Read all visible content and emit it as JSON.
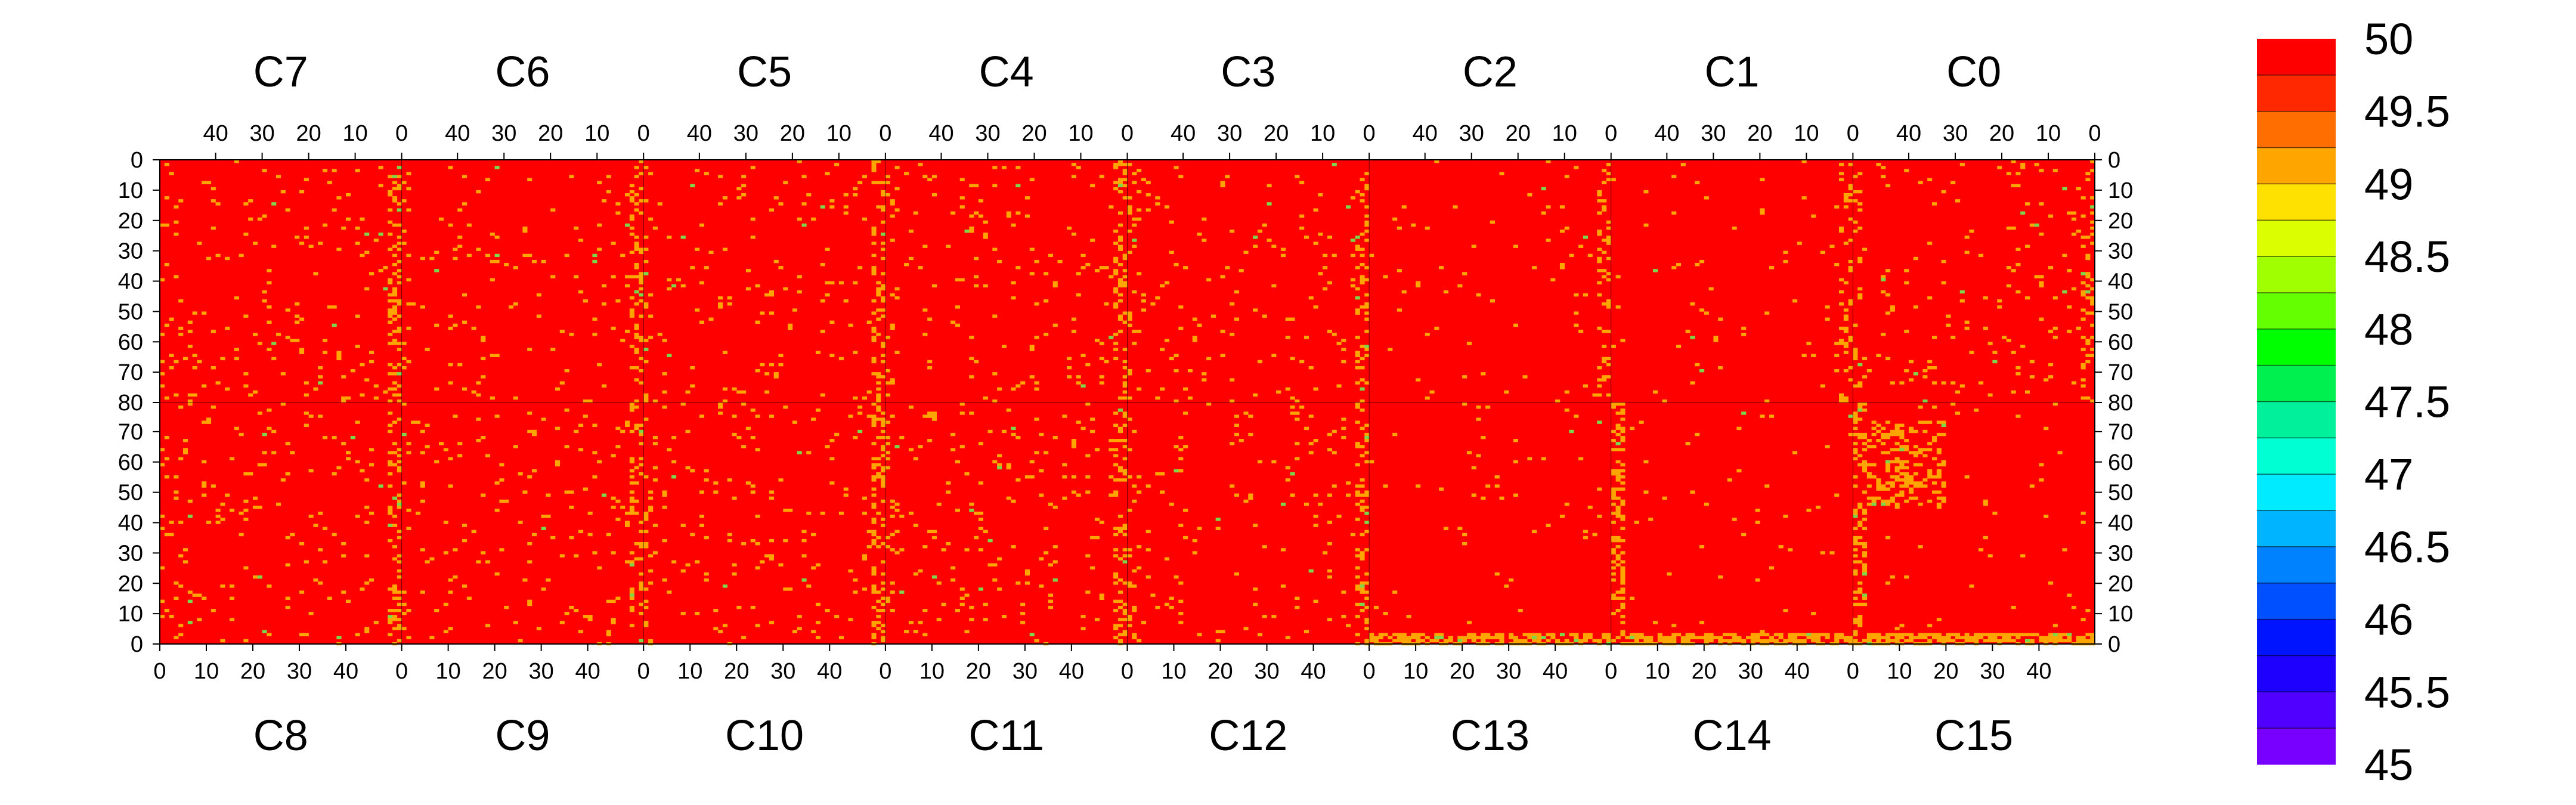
{
  "chart_data": {
    "type": "heatmap",
    "top_chips": [
      "C7",
      "C6",
      "C5",
      "C4",
      "C3",
      "C2",
      "C1",
      "C0"
    ],
    "bottom_chips": [
      "C8",
      "C9",
      "C10",
      "C11",
      "C12",
      "C13",
      "C14",
      "C15"
    ],
    "columns_per_chip": 52,
    "rows_per_half": 80,
    "top_x_ticks": [
      "40",
      "30",
      "20",
      "10",
      "0"
    ],
    "top_x_tick_values": [
      40,
      30,
      20,
      10,
      0
    ],
    "bottom_x_ticks": [
      "0",
      "10",
      "20",
      "30",
      "40"
    ],
    "bottom_x_tick_values": [
      0,
      10,
      20,
      30,
      40
    ],
    "y_ticks_top_half": [
      "0",
      "10",
      "20",
      "30",
      "40",
      "50",
      "60",
      "70",
      "80"
    ],
    "y_ticks_bottom_half": [
      "70",
      "60",
      "50",
      "40",
      "30",
      "20",
      "10",
      "0"
    ],
    "zlim": [
      45,
      50
    ],
    "colorbar_ticks": [
      "50",
      "49.5",
      "49",
      "48.5",
      "48",
      "47.5",
      "47",
      "46.5",
      "46",
      "45.5",
      "45"
    ],
    "colorbar_colors": [
      "#ff0000",
      "#ff2800",
      "#ff6e00",
      "#ffa500",
      "#ffe100",
      "#dcff00",
      "#a0ff00",
      "#64ff00",
      "#00ff00",
      "#00f050",
      "#00f09b",
      "#00ffd2",
      "#00ebff",
      "#00b4ff",
      "#0082ff",
      "#0050ff",
      "#0014ff",
      "#1e00ff",
      "#5000ff",
      "#7800ff"
    ],
    "base_value": 50,
    "elevated_color": "#ffa500",
    "low_color": "#7cd84a",
    "column_stripe_color": "#ffa500",
    "grid_line_color": "#000000",
    "background_color": "#ffffff"
  }
}
